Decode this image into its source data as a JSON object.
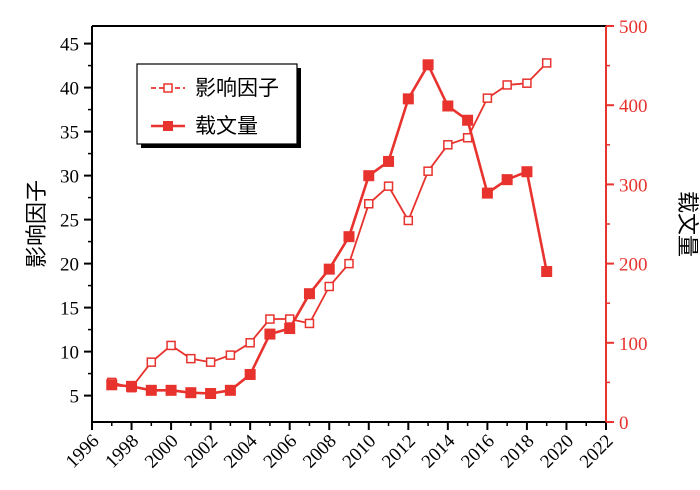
{
  "chart_data": {
    "type": "line",
    "title": "",
    "xlabel": "",
    "ylabel_left": "影响因子",
    "ylabel_right": "载文量",
    "xlim": [
      1996,
      2022
    ],
    "ylim_left": [
      2,
      47
    ],
    "ylim_right": [
      0,
      500
    ],
    "x_ticks": [
      "1996",
      "1998",
      "2000",
      "2002",
      "2004",
      "2006",
      "2008",
      "2010",
      "2012",
      "2014",
      "2016",
      "2018",
      "2020",
      "2022"
    ],
    "y_ticks_left": [
      "5",
      "10",
      "15",
      "20",
      "25",
      "30",
      "35",
      "40",
      "45"
    ],
    "y_ticks_right": [
      "0",
      "100",
      "200",
      "300",
      "400",
      "500"
    ],
    "x": [
      1997,
      1998,
      1999,
      2000,
      2001,
      2002,
      2003,
      2004,
      2005,
      2006,
      2007,
      2008,
      2009,
      2010,
      2011,
      2012,
      2013,
      2014,
      2015,
      2016,
      2017,
      2018,
      2019
    ],
    "series": [
      {
        "name": "影响因子",
        "axis": "left",
        "marker": "hollow-square",
        "line": "dashed",
        "values": [
          6.5,
          5.9,
          8.8,
          10.7,
          9.2,
          8.8,
          9.6,
          11.0,
          13.7,
          13.7,
          13.2,
          17.4,
          20.0,
          26.8,
          28.8,
          24.9,
          30.5,
          33.5,
          34.3,
          38.8,
          40.3,
          40.5,
          42.8
        ]
      },
      {
        "name": "载文量",
        "axis": "right",
        "marker": "filled-square",
        "line": "solid",
        "values": [
          47,
          45,
          40,
          40,
          37,
          36,
          40,
          60,
          111,
          118,
          162,
          193,
          234,
          311,
          329,
          408,
          451,
          399,
          381,
          289,
          306,
          316,
          190
        ]
      }
    ],
    "legend_position": "top-left",
    "grid": false,
    "colors": {
      "series": "#e8322d",
      "left_axis": "#000000",
      "right_axis": "#e8322d",
      "legend_shadow": "#000000"
    }
  }
}
